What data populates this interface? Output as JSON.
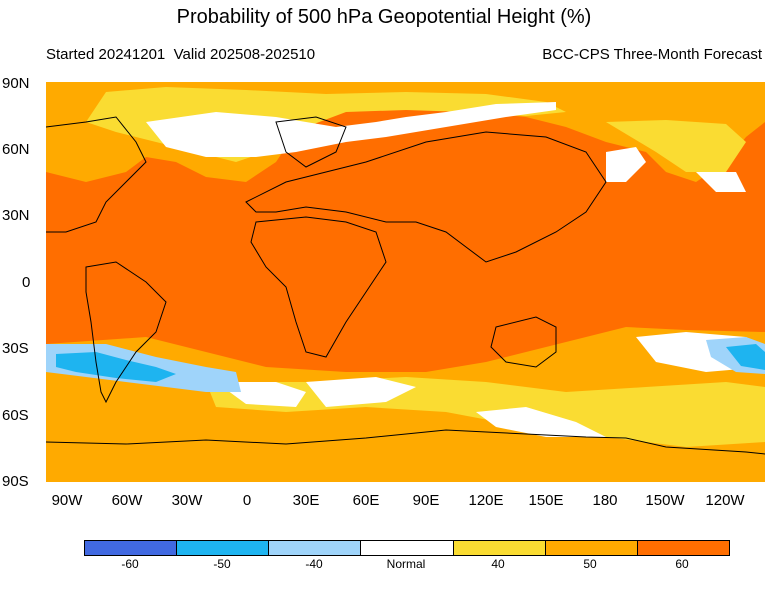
{
  "title": "Probability of 500 hPa Geopotential Height (%)",
  "subtitle_left": "Started 20241201  Valid 202508-202510",
  "subtitle_right": "BCC-CPS Three-Month Forecast",
  "lat_labels": [
    "90N",
    "60N",
    "30N",
    "0",
    "30S",
    "60S",
    "90S"
  ],
  "lon_labels": [
    "90W",
    "60W",
    "30W",
    "0",
    "30E",
    "60E",
    "90E",
    "120E",
    "150E",
    "180",
    "150W",
    "120W"
  ],
  "legend": {
    "colors": [
      "#4169e1",
      "#1eb4f0",
      "#9fd4fa",
      "#ffffff",
      "#fadc32",
      "#ffaa00",
      "#ff6e00"
    ],
    "labels": [
      "-60",
      "-50",
      "-40",
      "Normal",
      "40",
      "50",
      "60"
    ]
  },
  "map_colors": {
    "ocean_base": "#ff6e00",
    "band_50": "#ffaa00",
    "band_40": "#fadc32",
    "normal": "#ffffff",
    "neg_40": "#9fd4fa",
    "neg_50": "#1eb4f0"
  }
}
